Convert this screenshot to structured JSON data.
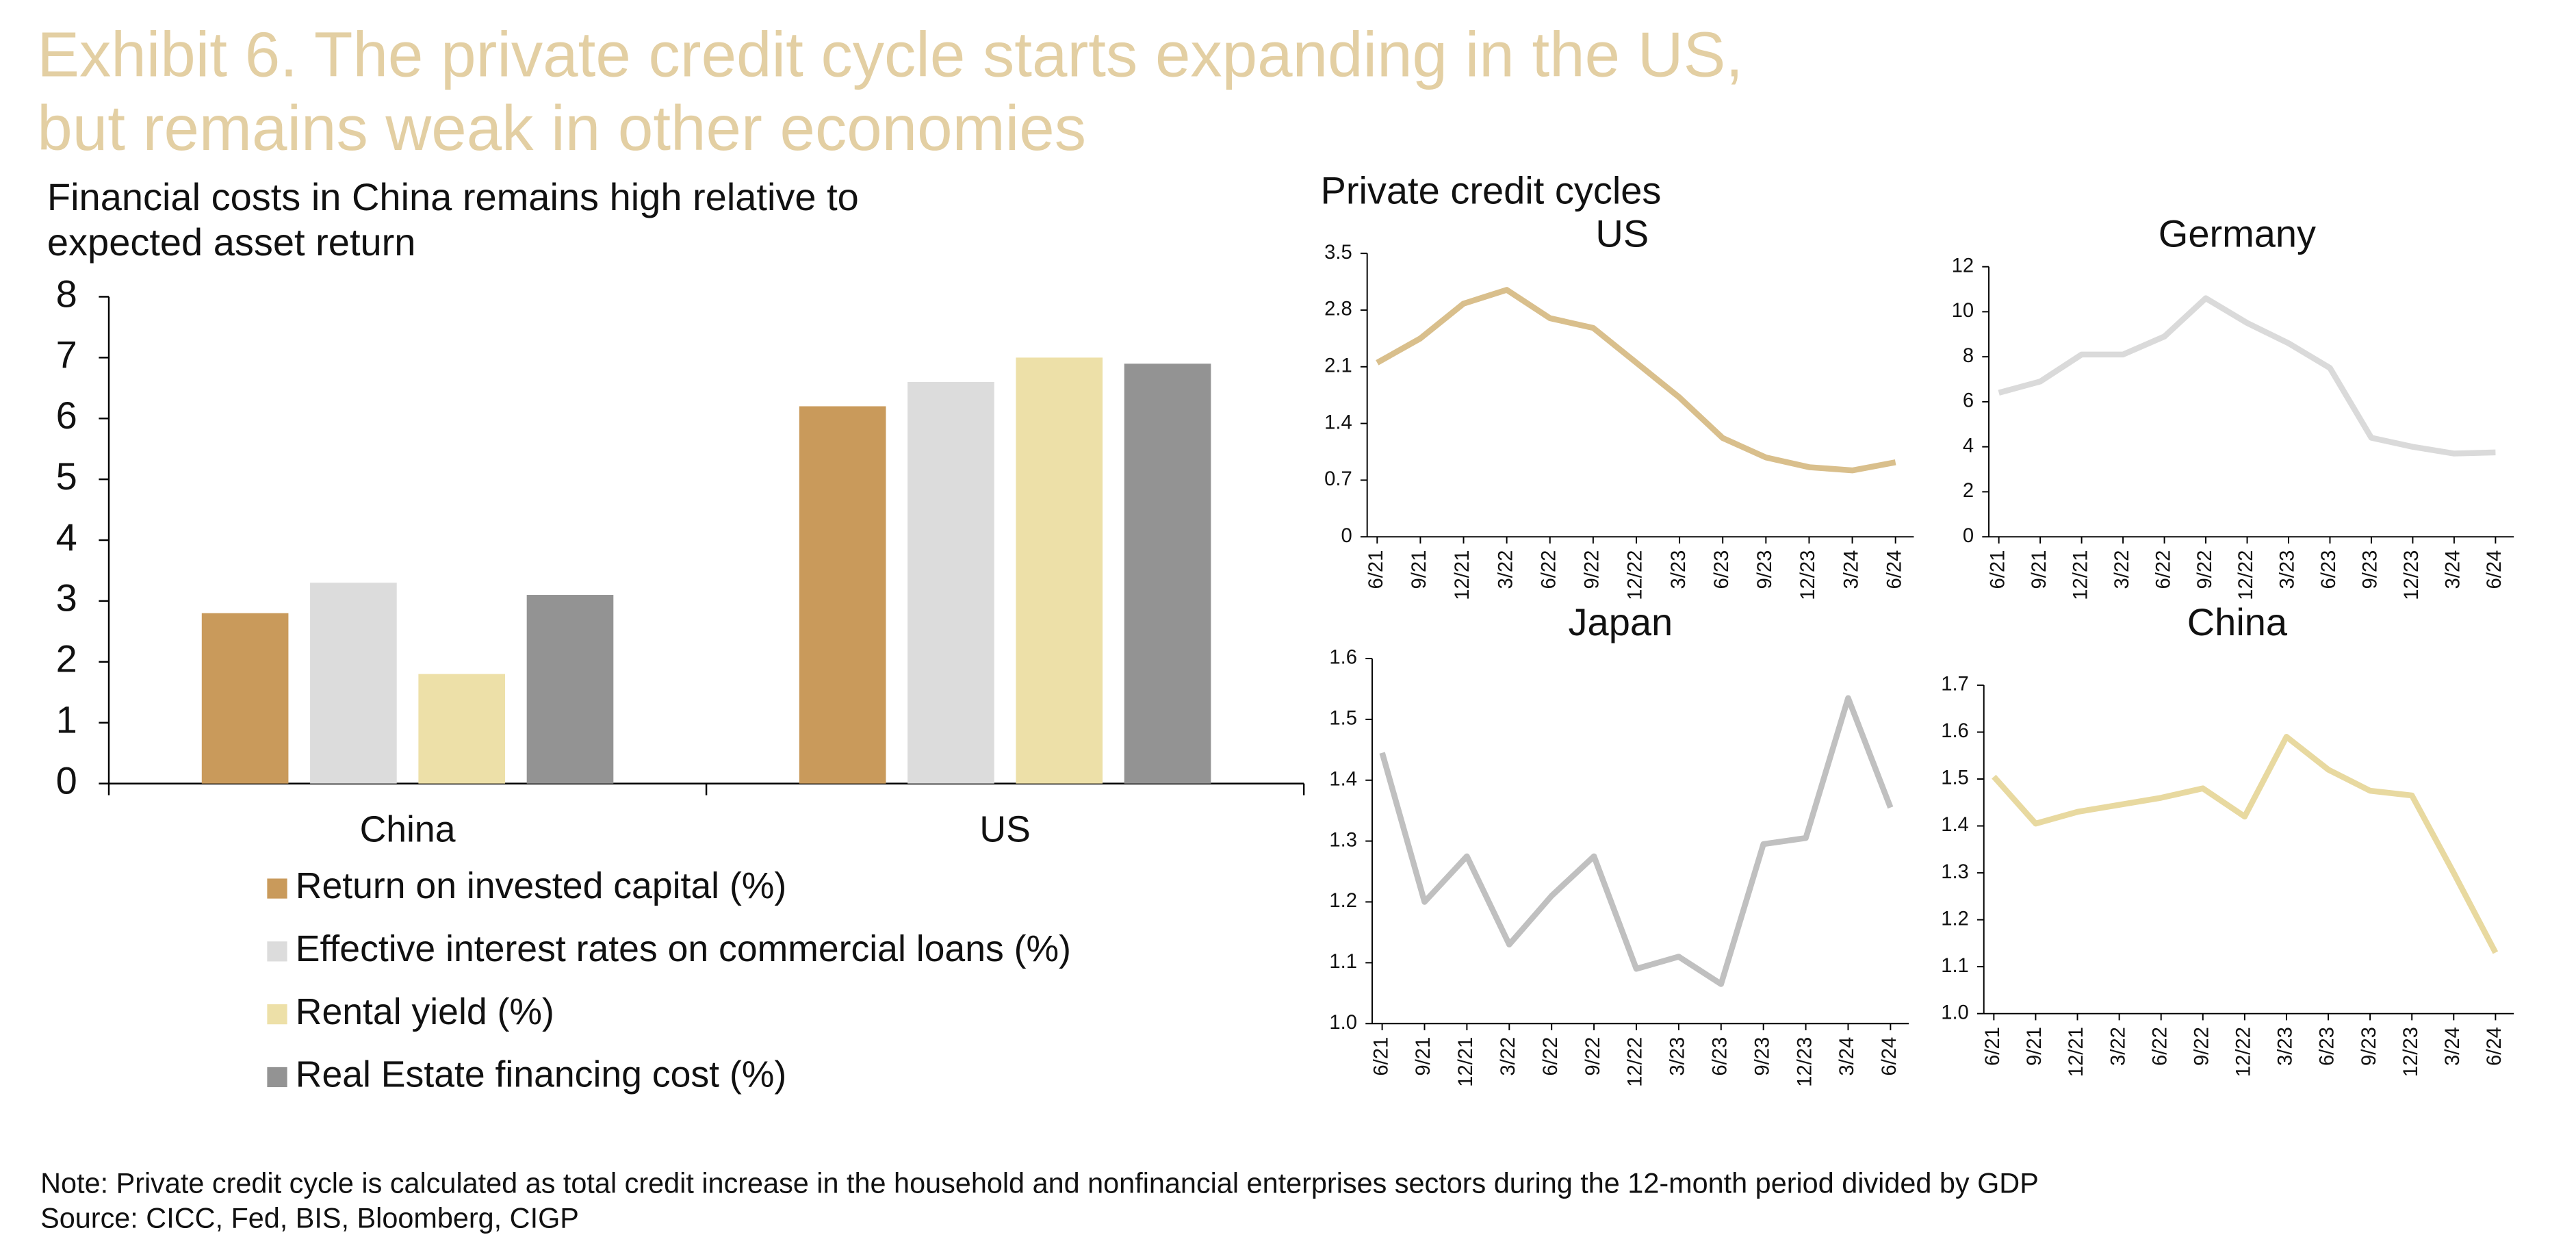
{
  "title": "Exhibit 6. The private credit cycle starts expanding in the US, but remains weak in other economies",
  "panel_title": "Private  credit cycles",
  "note": "Note: Private credit cycle is calculated as total credit increase in the household and nonfinancial enterprises sectors during the 12-month period divided by GDP",
  "source": "Source: CICC, Fed, BIS, Bloomberg, CIGP",
  "chart_data": [
    {
      "type": "bar",
      "title": "Financial costs in China remains high relative to expected asset return",
      "categories": [
        "China",
        "US"
      ],
      "series": [
        {
          "name": "Return on invested capital (%)",
          "color": "#c99a5b",
          "values": [
            2.8,
            6.2
          ]
        },
        {
          "name": "Effective interest rates on commercial loans (%)",
          "color": "#dcdcdc",
          "values": [
            3.3,
            6.6
          ]
        },
        {
          "name": "Rental yield (%)",
          "color": "#ede0a8",
          "values": [
            1.8,
            7.0
          ]
        },
        {
          "name": "Real Estate financing cost (%)",
          "color": "#939393",
          "values": [
            3.1,
            6.9
          ]
        }
      ],
      "ylim": [
        0,
        8
      ],
      "yticks": [
        0,
        1,
        2,
        3,
        4,
        5,
        6,
        7,
        8
      ],
      "grid": false
    },
    {
      "type": "line",
      "title": "US",
      "categories": [
        "6/21",
        "9/21",
        "12/21",
        "3/22",
        "6/22",
        "9/22",
        "12/22",
        "3/23",
        "6/23",
        "9/23",
        "12/23",
        "3/24",
        "6/24"
      ],
      "values": [
        2.15,
        2.45,
        2.88,
        3.05,
        2.7,
        2.58,
        2.15,
        1.72,
        1.22,
        0.98,
        0.86,
        0.82,
        0.92
      ],
      "color": "#d9bf8c",
      "ylim": [
        0,
        3.5
      ],
      "yticks": [
        0,
        0.7,
        1.4,
        2.1,
        2.8,
        3.5
      ]
    },
    {
      "type": "line",
      "title": "Germany",
      "categories": [
        "6/21",
        "9/21",
        "12/21",
        "3/22",
        "6/22",
        "9/22",
        "12/22",
        "3/23",
        "6/23",
        "9/23",
        "12/23",
        "3/24",
        "6/24"
      ],
      "values": [
        6.4,
        6.9,
        8.1,
        8.1,
        8.9,
        10.6,
        9.5,
        8.6,
        7.5,
        4.4,
        4.0,
        3.7,
        3.75
      ],
      "color": "#dadada",
      "ylim": [
        0,
        12
      ],
      "yticks": [
        0,
        2,
        4,
        6,
        8,
        10,
        12
      ]
    },
    {
      "type": "line",
      "title": "Japan",
      "categories": [
        "6/21",
        "9/21",
        "12/21",
        "3/22",
        "6/22",
        "9/22",
        "12/22",
        "3/23",
        "6/23",
        "9/23",
        "12/23",
        "3/24",
        "6/24"
      ],
      "values": [
        1.445,
        1.2,
        1.275,
        1.13,
        1.21,
        1.275,
        1.09,
        1.11,
        1.065,
        1.295,
        1.305,
        1.535,
        1.355
      ],
      "color": "#c0c0c0",
      "ylim": [
        1,
        1.6
      ],
      "yticks": [
        {
          "value": 1,
          "label": "1.0"
        },
        1.1,
        1.2,
        1.3,
        1.4,
        1.5,
        1.6
      ]
    },
    {
      "type": "line",
      "title": "China",
      "categories": [
        "6/21",
        "9/21",
        "12/21",
        "3/22",
        "6/22",
        "9/22",
        "12/22",
        "3/23",
        "6/23",
        "9/23",
        "12/23",
        "3/24",
        "6/24"
      ],
      "values": [
        1.505,
        1.405,
        1.43,
        1.445,
        1.46,
        1.48,
        1.42,
        1.59,
        1.52,
        1.475,
        1.465,
        1.3,
        1.13
      ],
      "color": "#e8d9a0",
      "ylim": [
        1,
        1.7
      ],
      "yticks": [
        {
          "value": 1,
          "label": "1.0"
        },
        1.1,
        1.2,
        1.3,
        1.4,
        1.5,
        1.6,
        1.7
      ]
    }
  ]
}
